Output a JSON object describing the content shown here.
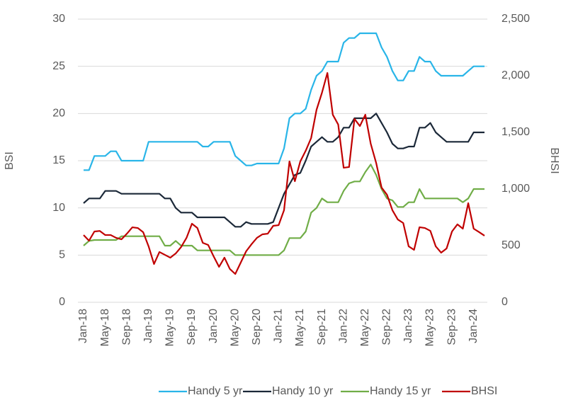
{
  "chart_data": {
    "type": "line",
    "y_label": "BSI",
    "y2_label": "BHSI",
    "categories": [
      "Jan-18",
      null,
      null,
      null,
      "May-18",
      null,
      null,
      null,
      "Sep-18",
      null,
      null,
      null,
      "Jan-19",
      null,
      null,
      null,
      "May-19",
      null,
      null,
      null,
      "Sep-19",
      null,
      null,
      null,
      "Jan-20",
      null,
      null,
      null,
      "May-20",
      null,
      null,
      null,
      "Sep-20",
      null,
      null,
      null,
      "Jan-21",
      null,
      null,
      null,
      "May-21",
      null,
      null,
      null,
      "Sep-21",
      null,
      null,
      null,
      "Jan-22",
      null,
      null,
      null,
      "May-22",
      null,
      null,
      null,
      "Sep-22",
      null,
      null,
      null,
      "Jan-23",
      null,
      null,
      null,
      "May-23",
      null,
      null,
      null,
      "Sep-23",
      null,
      null,
      null,
      "Jan-24",
      null,
      null
    ],
    "ylim": [
      0,
      30
    ],
    "yticks": [
      0,
      5,
      10,
      15,
      20,
      25,
      30
    ],
    "y2lim": [
      0,
      2500
    ],
    "y2ticks": [
      0,
      500,
      {
        "value": 1000,
        "label": "1,000"
      },
      {
        "value": 1500,
        "label": "1,500"
      },
      {
        "value": 2000,
        "label": "2,000"
      },
      {
        "value": 2500,
        "label": "2,500"
      }
    ],
    "grid": true,
    "legend": "bottom",
    "series": [
      {
        "name": "Handy 5 yr",
        "color": "#29b5e8",
        "values": [
          14,
          14,
          15.5,
          15.5,
          15.5,
          16,
          16,
          15,
          15,
          15,
          15,
          15,
          17,
          17,
          17,
          17,
          17,
          17,
          17,
          17,
          17,
          17,
          16.5,
          16.5,
          17,
          17,
          17,
          17,
          15.5,
          15,
          14.5,
          14.5,
          14.7,
          14.7,
          14.7,
          14.7,
          14.7,
          16.3,
          19.5,
          20,
          20,
          20.5,
          22.5,
          24,
          24.5,
          25.5,
          25.5,
          25.5,
          27.5,
          28,
          28,
          28.5,
          28.5,
          28.5,
          28.5,
          27,
          26,
          24.5,
          23.5,
          23.5,
          24.5,
          24.5,
          26,
          25.5,
          25.5,
          24.5,
          24,
          24,
          24,
          24,
          24,
          24.5,
          25,
          25,
          25
        ]
      },
      {
        "name": "Handy 10 yr",
        "color": "#1b2838",
        "values": [
          10.5,
          11,
          11,
          11,
          11.8,
          11.8,
          11.8,
          11.5,
          11.5,
          11.5,
          11.5,
          11.5,
          11.5,
          11.5,
          11.5,
          11,
          11,
          10,
          9.5,
          9.5,
          9.5,
          9,
          9,
          9,
          9,
          9,
          9,
          8.5,
          8,
          8,
          8.5,
          8.3,
          8.3,
          8.3,
          8.3,
          8.5,
          10,
          11.5,
          12.5,
          13.5,
          13.7,
          15,
          16.5,
          17,
          17.5,
          17,
          17,
          17.5,
          18.5,
          18.5,
          19.5,
          19.5,
          19.5,
          19.5,
          20,
          19,
          18,
          16.8,
          16.3,
          16.3,
          16.5,
          16.5,
          18.5,
          18.5,
          19,
          18,
          17.5,
          17,
          17,
          17,
          17,
          17,
          18,
          18,
          18
        ]
      },
      {
        "name": "Handy 15 yr",
        "color": "#70ad47",
        "values": [
          6,
          6.5,
          6.6,
          6.6,
          6.6,
          6.6,
          6.6,
          7,
          7,
          7,
          7,
          7,
          7,
          7,
          7,
          6,
          6,
          6.5,
          6,
          6,
          6,
          5.5,
          5.5,
          5.5,
          5.5,
          5.5,
          5.5,
          5.5,
          5,
          5,
          5,
          5,
          5,
          5,
          5,
          5,
          5,
          5.5,
          6.8,
          6.8,
          6.8,
          7.5,
          9.5,
          10,
          11,
          10.6,
          10.6,
          10.6,
          11.8,
          12.6,
          12.8,
          12.8,
          13.8,
          14.6,
          13.5,
          12,
          11,
          10.8,
          10.1,
          10.1,
          10.6,
          10.6,
          12,
          11,
          11,
          11,
          11,
          11,
          11,
          11,
          10.6,
          11,
          12,
          12,
          12
        ]
      },
      {
        "name": "BHSI",
        "color": "#c00000",
        "axis": "y2",
        "values": [
          594,
          544,
          625,
          630,
          594,
          594,
          569,
          556,
          606,
          662,
          656,
          619,
          494,
          338,
          444,
          419,
          394,
          431,
          488,
          569,
          694,
          656,
          525,
          506,
          406,
          313,
          394,
          294,
          250,
          350,
          450,
          513,
          569,
          600,
          606,
          675,
          681,
          813,
          1244,
          1069,
          1244,
          1338,
          1450,
          1700,
          1850,
          2025,
          1656,
          1569,
          1188,
          1194,
          1619,
          1556,
          1656,
          1400,
          1231,
          1013,
          950,
          813,
          731,
          700,
          494,
          463,
          663,
          656,
          631,
          494,
          438,
          475,
          625,
          688,
          650,
          875,
          650,
          620,
          588
        ]
      }
    ]
  }
}
